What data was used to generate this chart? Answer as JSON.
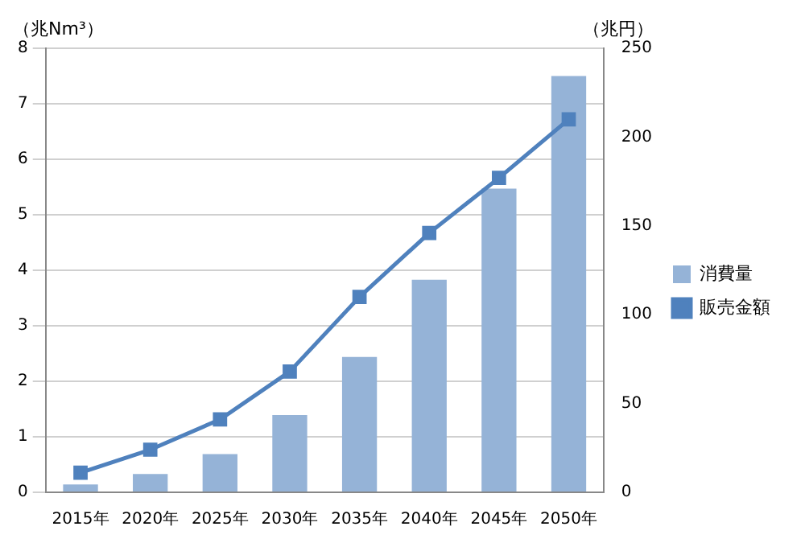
{
  "chart_data": {
    "type": "bar",
    "ylabel": "（兆Nm³）",
    "y2label": "（兆円）",
    "categories": [
      "2015年",
      "2020年",
      "2025年",
      "2030年",
      "2035年",
      "2040年",
      "2045年",
      "2050年"
    ],
    "series": [
      {
        "name": "消費量",
        "color": "#95b3d7",
        "values": [
          0.14,
          0.33,
          0.69,
          1.39,
          2.44,
          3.83,
          5.47,
          7.5
        ]
      },
      {
        "name": "販売金額",
        "type": "line",
        "axis": "y2",
        "color": "#4f81bd",
        "values": [
          11,
          24,
          41,
          68,
          110,
          146,
          177,
          210
        ]
      }
    ],
    "ylim": [
      0,
      8
    ],
    "yticks": [
      0,
      1,
      2,
      3,
      4,
      5,
      6,
      7,
      8
    ],
    "y2lim": [
      0,
      250
    ],
    "y2ticks": [
      0,
      50,
      100,
      150,
      200,
      250
    ],
    "grid": "y",
    "legend": "right",
    "marker": "square",
    "line_style": "solid"
  }
}
